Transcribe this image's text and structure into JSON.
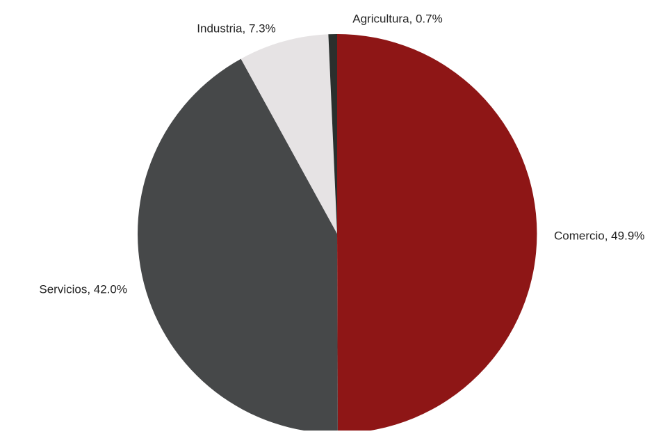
{
  "chart_data": {
    "type": "pie",
    "title": "",
    "start_angle_deg": 0,
    "direction": "clockwise",
    "legend": "none",
    "slices": [
      {
        "label": "Comercio, 49.9%",
        "name": "Comercio",
        "value": 49.9,
        "color": "#8e1616"
      },
      {
        "label": "Servicios, 42.0%",
        "name": "Servicios",
        "value": 42.0,
        "color": "#464849"
      },
      {
        "label": "Industria, 7.3%",
        "name": "Industria",
        "value": 7.3,
        "color": "#e6e3e4"
      },
      {
        "label": "Agricultura, 0.7%",
        "name": "Agricultura",
        "value": 0.7,
        "color": "#2a2f2d"
      }
    ]
  }
}
